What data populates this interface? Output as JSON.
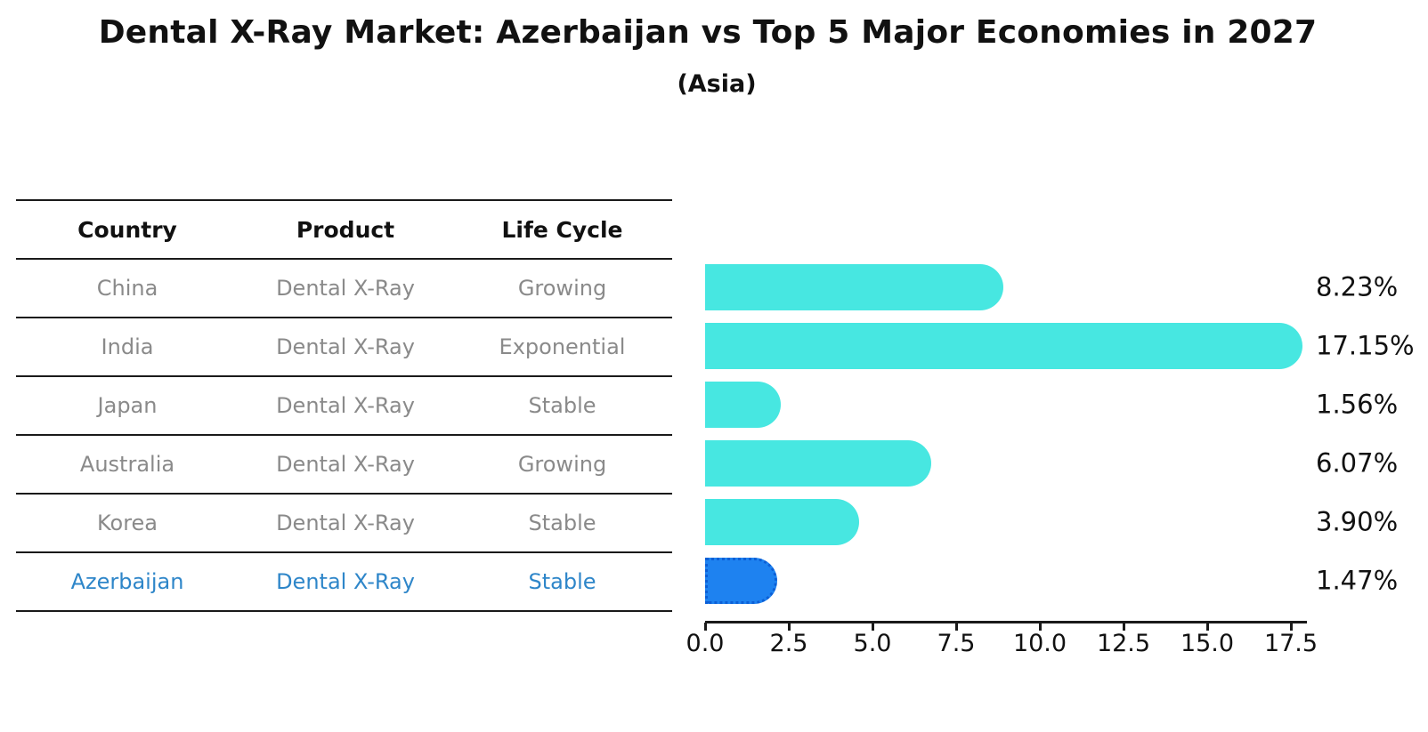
{
  "title": "Dental X-Ray Market: Azerbaijan vs Top 5 Major Economies in 2027",
  "subtitle": "(Asia)",
  "table": {
    "headers": [
      "Country",
      "Product",
      "Life Cycle"
    ],
    "rows": [
      {
        "country": "China",
        "product": "Dental X-Ray",
        "life_cycle": "Growing"
      },
      {
        "country": "India",
        "product": "Dental X-Ray",
        "life_cycle": "Exponential"
      },
      {
        "country": "Japan",
        "product": "Dental X-Ray",
        "life_cycle": "Stable"
      },
      {
        "country": "Australia",
        "product": "Dental X-Ray",
        "life_cycle": "Growing"
      },
      {
        "country": "Korea",
        "product": "Dental X-Ray",
        "life_cycle": "Stable"
      },
      {
        "country": "Azerbaijan",
        "product": "Dental X-Ray",
        "life_cycle": "Stable"
      }
    ],
    "highlight_row": "Azerbaijan"
  },
  "chart_data": {
    "type": "bar",
    "orientation": "horizontal",
    "title": "Dental X-Ray Market: Azerbaijan vs Top 5 Major Economies in 2027",
    "subtitle": "(Asia)",
    "categories": [
      "China",
      "India",
      "Japan",
      "Australia",
      "Korea",
      "Azerbaijan"
    ],
    "values": [
      8.23,
      17.15,
      1.56,
      6.07,
      3.9,
      1.47
    ],
    "value_labels": [
      "8.23%",
      "17.15%",
      "1.56%",
      "6.07%",
      "3.90%",
      "1.47%"
    ],
    "xlim": [
      0,
      17.5
    ],
    "x_ticks": [
      0.0,
      2.5,
      5.0,
      7.5,
      10.0,
      12.5,
      15.0,
      17.5
    ],
    "x_tick_labels": [
      "0.0",
      "2.5",
      "5.0",
      "7.5",
      "10.0",
      "12.5",
      "15.0",
      "17.5"
    ],
    "grid": false,
    "legend": "none",
    "bar_color": "#47E7E1",
    "highlight_index": 5,
    "highlight_color": "#1E82F0",
    "highlight_border_color": "#0C5FD6"
  },
  "colors": {
    "background": "#ffffff",
    "title_text": "#111111",
    "table_header_text": "#111111",
    "table_row_text": "#8a8a8a",
    "table_line": "#1a1a1a",
    "highlight_text": "#2E86C9",
    "axis": "#1a1a1a",
    "value_label_text": "#111111"
  }
}
